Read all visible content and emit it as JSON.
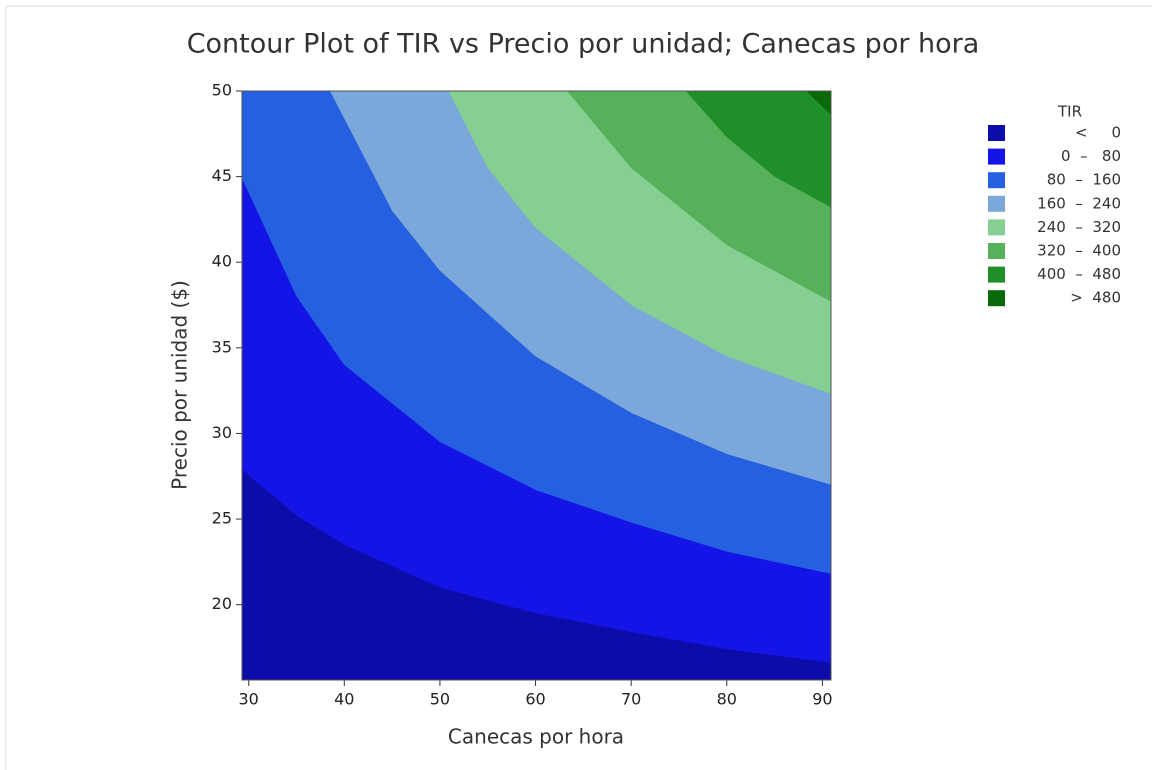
{
  "chart_data": {
    "type": "contour",
    "title": "Contour Plot of TIR vs Precio por unidad; Canecas por hora",
    "x_label": "Canecas por hora",
    "y_label": "Precio por unidad ($)",
    "xlim": [
      29.3,
      90.9
    ],
    "ylim": [
      15.6,
      50
    ],
    "xticks": [
      30,
      40,
      50,
      60,
      70,
      80,
      90
    ],
    "yticks": [
      20,
      25,
      30,
      35,
      40,
      45,
      50
    ],
    "legend_title": "TIR",
    "series": [
      {
        "name": "<     0",
        "color": "#0c0ca8"
      },
      {
        "name": "0  –   80",
        "color": "#1414e6"
      },
      {
        "name": "80  –  160",
        "color": "#2460e0"
      },
      {
        "name": "160  –  240",
        "color": "#7ba7db"
      },
      {
        "name": "240  –  320",
        "color": "#84cf91"
      },
      {
        "name": "320  –  400",
        "color": "#56b15a"
      },
      {
        "name": "400  –  480",
        "color": "#1f8f2a"
      },
      {
        "name": ">  480",
        "color": "#0a6a0a"
      }
    ],
    "contours": [
      {
        "level": 0,
        "x": [
          29.3,
          35,
          40,
          50,
          60,
          70,
          80,
          90.9
        ],
        "y": [
          27.9,
          25.2,
          23.5,
          21.0,
          19.5,
          18.4,
          17.4,
          16.6
        ]
      },
      {
        "level": 80,
        "x": [
          29.3,
          35,
          40,
          50,
          60,
          70,
          80,
          90.9
        ],
        "y": [
          44.9,
          38,
          34,
          29.5,
          26.7,
          24.8,
          23.1,
          21.8
        ]
      },
      {
        "level": 160,
        "x": [
          38.5,
          45,
          50,
          60,
          70,
          80,
          90.9
        ],
        "y": [
          50,
          43,
          39.5,
          34.5,
          31.2,
          28.8,
          27.0
        ]
      },
      {
        "level": 240,
        "x": [
          50.9,
          55,
          60,
          70,
          80,
          90.9
        ],
        "y": [
          50,
          45.5,
          42,
          37.5,
          34.5,
          32.3
        ]
      },
      {
        "level": 320,
        "x": [
          63.3,
          70,
          80,
          90.9
        ],
        "y": [
          50,
          45.5,
          41,
          37.7
        ]
      },
      {
        "level": 400,
        "x": [
          75.7,
          80,
          85,
          90.9
        ],
        "y": [
          50,
          47.3,
          45,
          43.2
        ]
      },
      {
        "level": 480,
        "x": [
          88.3,
          90.9
        ],
        "y": [
          50,
          48.6
        ]
      }
    ]
  }
}
